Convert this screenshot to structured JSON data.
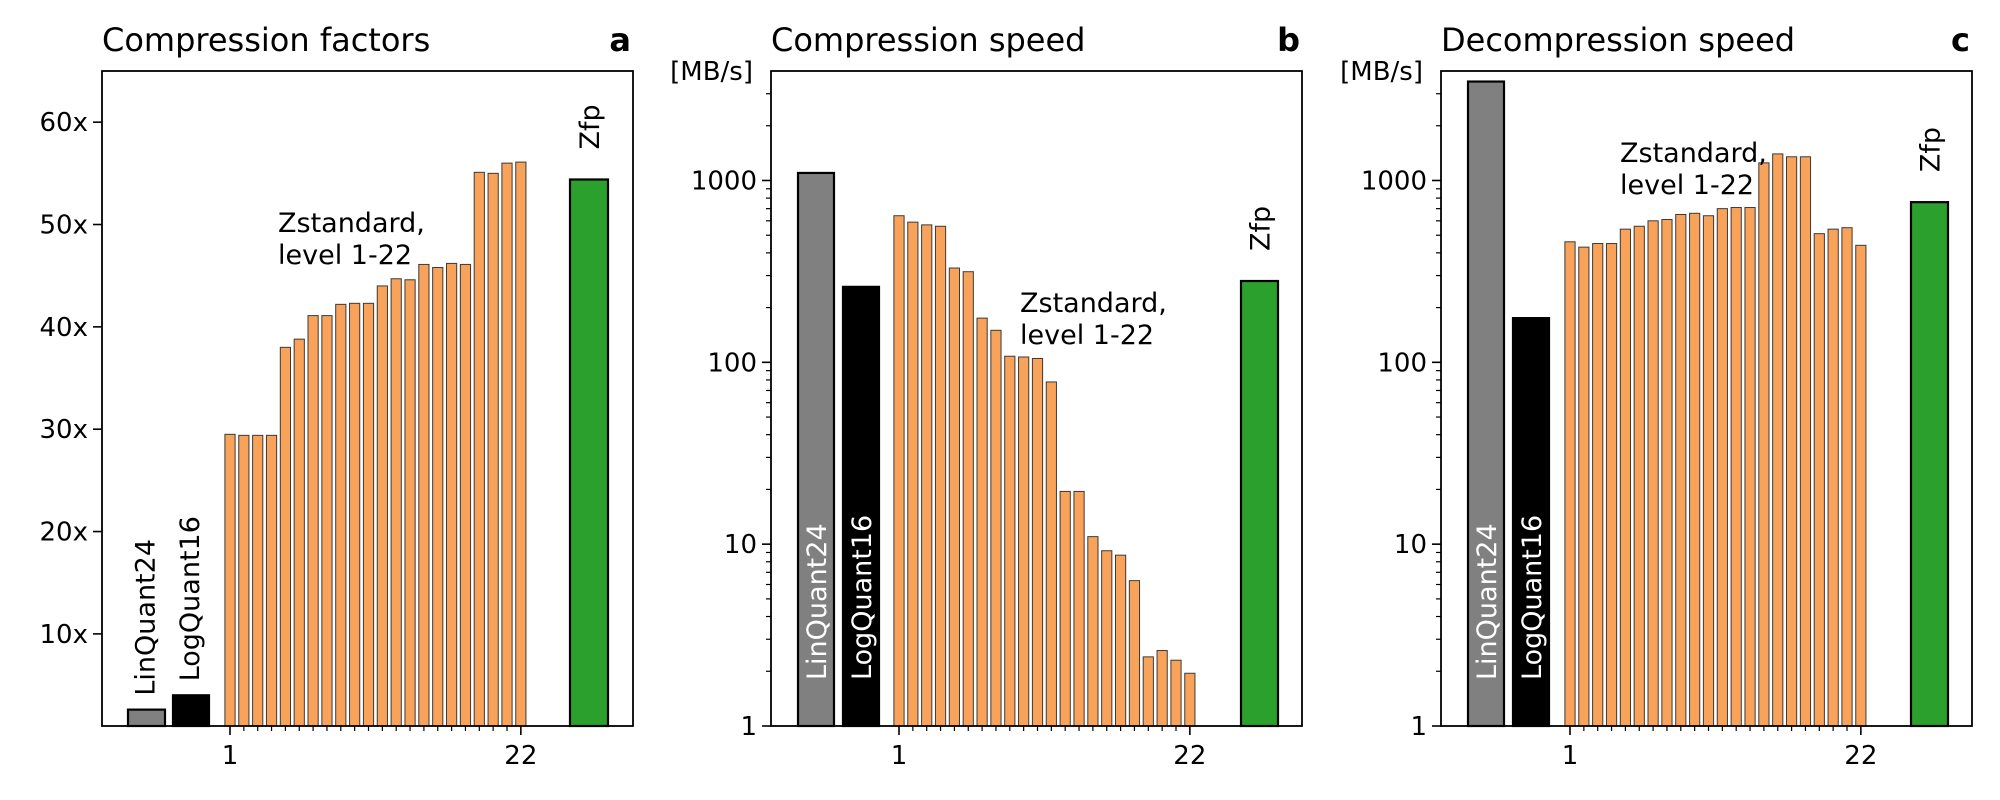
{
  "colors": {
    "linquant": "#808080",
    "logquant": "#000000",
    "zstd": "#f9a35a",
    "zfp": "#2ca02c"
  },
  "chart_data": [
    {
      "type": "bar",
      "title": "Compression factors",
      "panel_letter": "a",
      "scale": "linear",
      "ylabel": "",
      "ylim": [
        1,
        65
      ],
      "yticks": [
        10,
        20,
        30,
        40,
        50,
        60
      ],
      "ytick_labels": [
        "10x",
        "20x",
        "30x",
        "40x",
        "50x",
        "60x"
      ],
      "xtick_labels": [
        "1",
        "22"
      ],
      "annotation": [
        "Zstandard,",
        "level 1-22"
      ],
      "labels": {
        "linquant": "LinQuant24",
        "logquant": "LogQuant16",
        "zfp": "Zfp"
      },
      "values": {
        "linquant": 2.6,
        "logquant": 4,
        "zstd": [
          29.5,
          29.4,
          29.4,
          29.4,
          38,
          38.8,
          41.1,
          41.1,
          42.2,
          42.3,
          42.3,
          44,
          44.7,
          44.6,
          46.1,
          45.8,
          46.2,
          46.1,
          55.1,
          55,
          56,
          56.1
        ],
        "zfp": 54.4
      }
    },
    {
      "type": "bar",
      "title": "Compression speed",
      "panel_letter": "b",
      "scale": "log",
      "ylabel": "[MB/s]",
      "ylim": [
        1,
        4000
      ],
      "yticks": [
        1,
        10,
        100,
        1000
      ],
      "ytick_labels": [
        "1",
        "10",
        "100",
        "1000"
      ],
      "xtick_labels": [
        "1",
        "22"
      ],
      "annotation": [
        "Zstandard,",
        "level 1-22"
      ],
      "labels": {
        "linquant": "LinQuant24",
        "logquant": "LogQuant16",
        "zfp": "Zfp"
      },
      "values": {
        "linquant": 1100,
        "logquant": 260,
        "zstd": [
          640,
          590,
          570,
          560,
          330,
          315,
          175,
          150,
          108,
          107,
          105,
          78,
          19.5,
          19.5,
          11,
          9.2,
          8.7,
          6.3,
          2.4,
          2.6,
          2.3,
          1.95
        ],
        "zfp": 280
      }
    },
    {
      "type": "bar",
      "title": "Decompression speed",
      "panel_letter": "c",
      "scale": "log",
      "ylabel": "[MB/s]",
      "ylim": [
        1,
        4000
      ],
      "yticks": [
        1,
        10,
        100,
        1000
      ],
      "ytick_labels": [
        "1",
        "10",
        "100",
        "1000"
      ],
      "xtick_labels": [
        "1",
        "22"
      ],
      "annotation": [
        "Zstandard,",
        "level 1-22"
      ],
      "labels": {
        "linquant": "LinQuant24",
        "logquant": "LogQuant16",
        "zfp": "Zfp"
      },
      "values": {
        "linquant": 3500,
        "logquant": 175,
        "zstd": [
          460,
          430,
          450,
          450,
          540,
          560,
          600,
          610,
          650,
          660,
          640,
          700,
          710,
          710,
          1250,
          1400,
          1350,
          1350,
          510,
          540,
          550,
          440
        ],
        "zfp": 760
      }
    }
  ]
}
